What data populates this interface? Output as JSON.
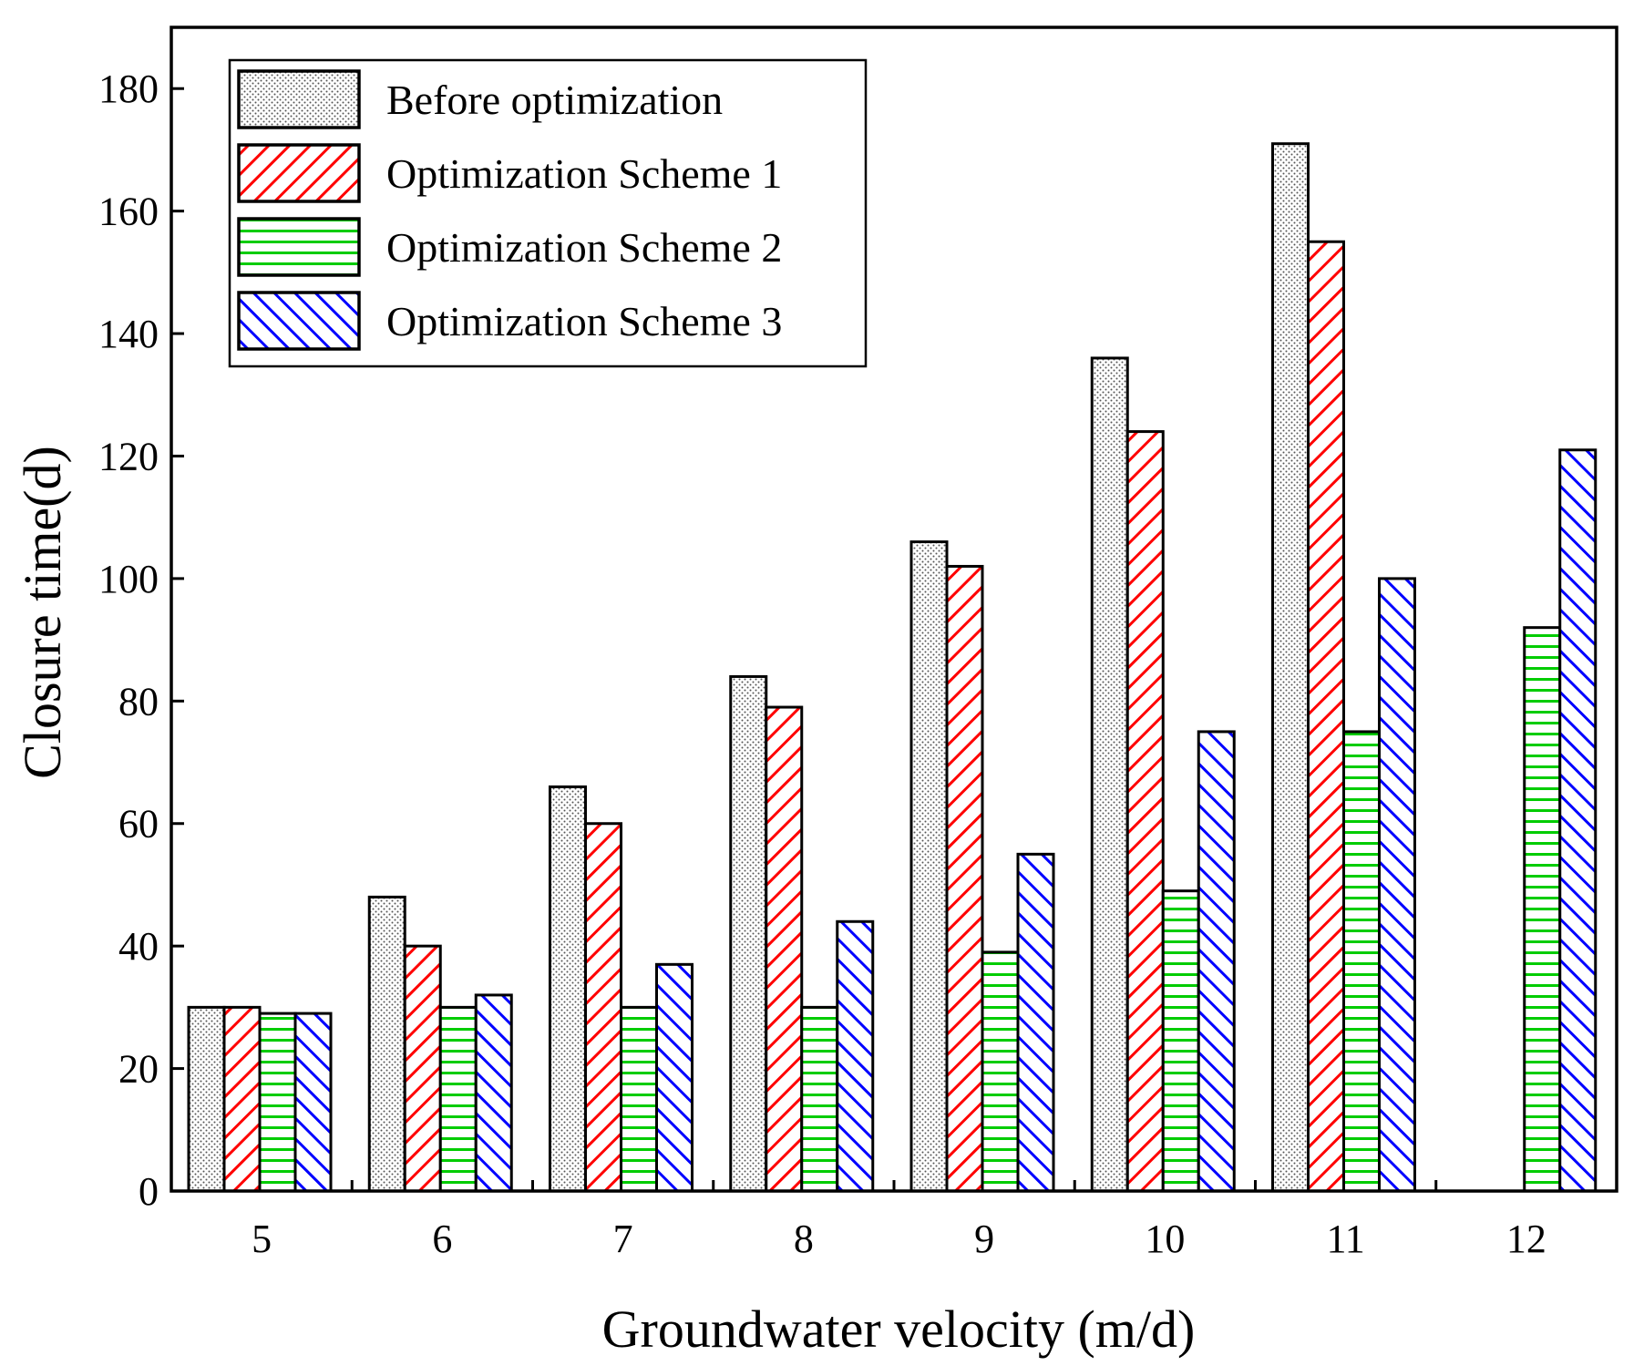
{
  "chart_data": {
    "type": "bar",
    "title": "",
    "xlabel": "Groundwater velocity (m/d)",
    "ylabel": "Closure time(d)",
    "ylim": [
      0,
      190
    ],
    "yticks": [
      "0",
      "20",
      "40",
      "60",
      "80",
      "100",
      "120",
      "140",
      "160",
      "180"
    ],
    "categories": [
      "5",
      "6",
      "7",
      "8",
      "9",
      "10",
      "11",
      "12"
    ],
    "legend_position": "top-left",
    "series": [
      {
        "name": "Before optimization",
        "values": [
          30,
          48,
          66,
          84,
          106,
          136,
          171,
          0
        ],
        "pattern": "dots",
        "color": "#000000"
      },
      {
        "name": "Optimization Scheme 1",
        "values": [
          30,
          40,
          60,
          79,
          102,
          124,
          155,
          0
        ],
        "pattern": "diagonal-up",
        "color": "#ff0000"
      },
      {
        "name": "Optimization Scheme 2",
        "values": [
          29,
          30,
          30,
          30,
          39,
          49,
          75,
          92
        ],
        "pattern": "horizontal",
        "color": "#00cc00"
      },
      {
        "name": "Optimization Scheme 3",
        "values": [
          29,
          32,
          37,
          44,
          55,
          75,
          100,
          121
        ],
        "pattern": "diagonal-down",
        "color": "#0000ff"
      }
    ]
  }
}
